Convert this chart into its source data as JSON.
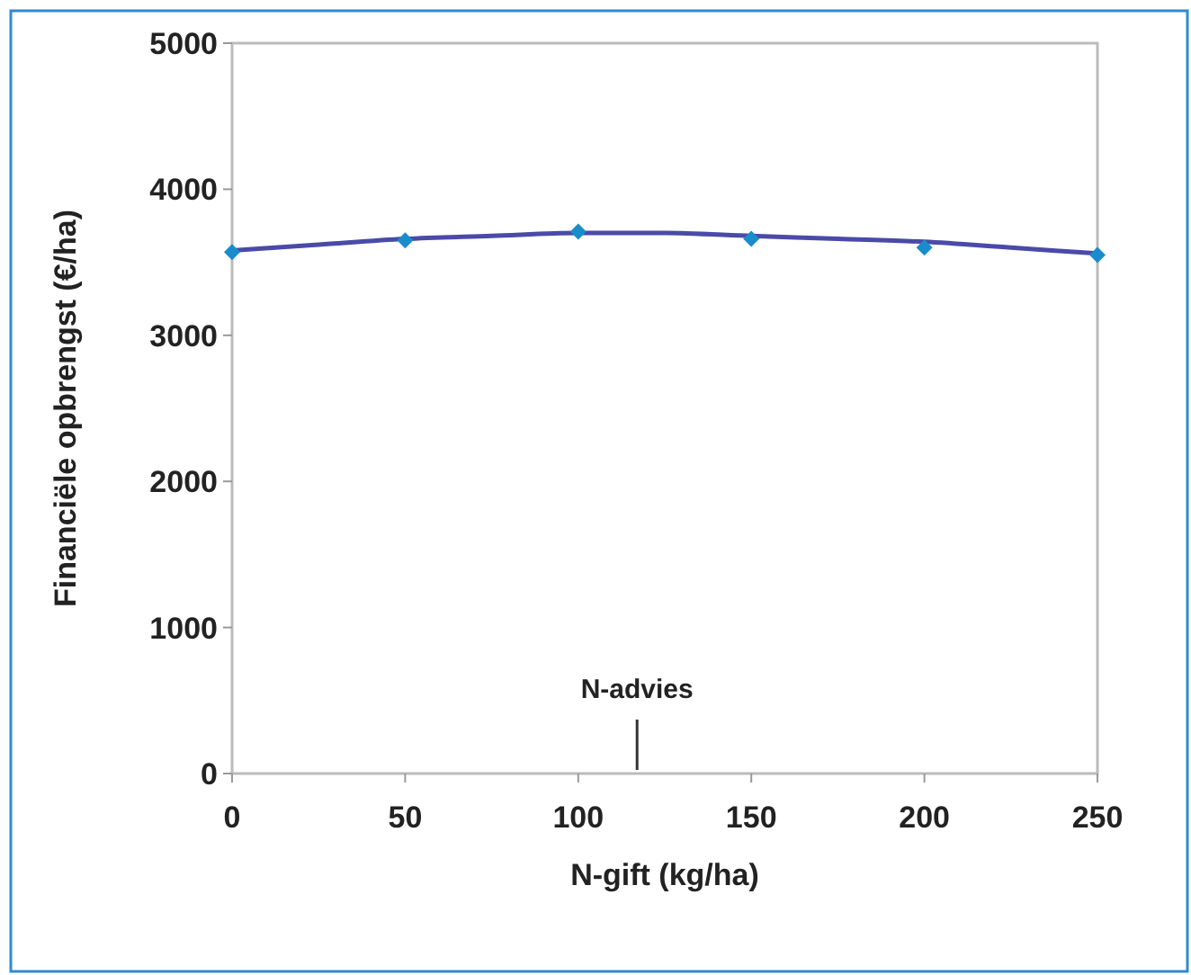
{
  "chart_data": {
    "type": "scatter",
    "xlabel": "N-gift (kg/ha)",
    "ylabel": "Financiële opbrengst (€/ha)",
    "xlim": [
      0,
      250
    ],
    "xticks": [
      0,
      50,
      100,
      150,
      200,
      250
    ],
    "ylim": [
      0,
      5000
    ],
    "yticks": [
      0,
      1000,
      2000,
      3000,
      4000,
      5000
    ],
    "grid": false,
    "marker": "diamond",
    "series": [
      {
        "color": "#1a8ccc",
        "x": [
          0,
          50,
          100,
          150,
          200,
          250
        ],
        "values": [
          3570,
          3650,
          3710,
          3660,
          3600,
          3550
        ]
      },
      {
        "type": "line",
        "color": "#4a4aa8",
        "marker": "none",
        "line_style": "solid",
        "x": [
          0,
          25,
          50,
          75,
          100,
          125,
          150,
          175,
          200,
          225,
          250
        ],
        "values": [
          3580,
          3620,
          3660,
          3680,
          3700,
          3700,
          3680,
          3660,
          3640,
          3600,
          3560
        ]
      }
    ],
    "ref_lines": [
      {
        "axis": "x",
        "value": 117,
        "label": "N-advies",
        "color": "#333333"
      }
    ]
  }
}
